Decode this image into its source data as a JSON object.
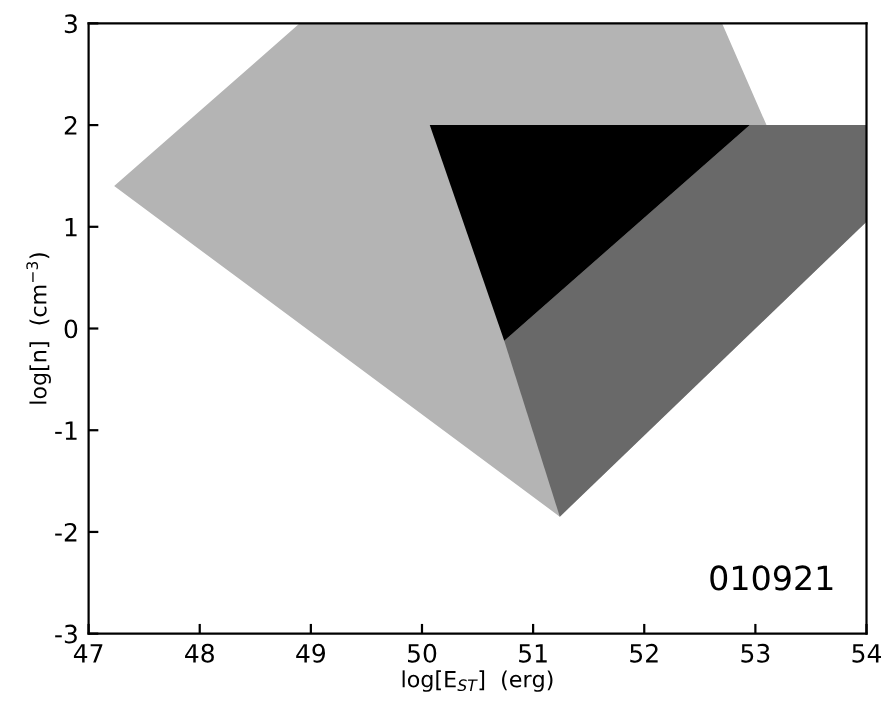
{
  "chart_data": {
    "type": "area",
    "xlabel": "log[E$_{ST}$]  (erg)",
    "ylabel": "log[n]  (cm$^{−3}$)",
    "xlim": [
      47,
      54
    ],
    "ylim": [
      -3,
      3
    ],
    "xticks": [
      47,
      48,
      49,
      50,
      51,
      52,
      53,
      54
    ],
    "yticks": [
      -3,
      -2,
      -1,
      0,
      1,
      2,
      3
    ],
    "grid": false,
    "annotations": [
      "010921"
    ],
    "series": [
      {
        "color": "#b4b4b4",
        "x": [
          47.23,
          48.9,
          52.7,
          53.1,
          54,
          54,
          51.24
        ],
        "values": [
          1.4,
          3,
          3,
          2,
          2,
          1.05,
          -1.85
        ]
      },
      {
        "color": "#696969",
        "x": [
          50.74,
          52.95,
          54,
          54,
          51.24
        ],
        "values": [
          -0.12,
          2,
          2,
          1.05,
          -1.85
        ]
      },
      {
        "color": "#000000",
        "x": [
          50.07,
          52.95,
          50.74
        ],
        "values": [
          2,
          2,
          -0.12
        ]
      }
    ]
  }
}
